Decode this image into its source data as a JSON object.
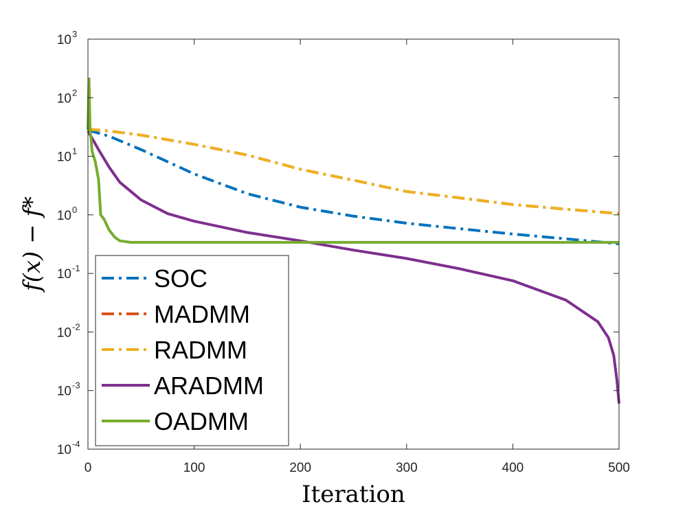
{
  "chart_data": {
    "type": "line",
    "title": "",
    "xlabel": "Iteration",
    "ylabel": "f(x) − f*",
    "xlim": [
      0,
      500
    ],
    "yscale": "log",
    "ylim": [
      0.0001,
      1000
    ],
    "xticks": [
      "0",
      "100",
      "200",
      "300",
      "400",
      "500"
    ],
    "xtick_values": [
      0,
      100,
      200,
      300,
      400,
      500
    ],
    "yticks": [
      {
        "base": "10",
        "exp": "-4",
        "value": 0.0001
      },
      {
        "base": "10",
        "exp": "-3",
        "value": 0.001
      },
      {
        "base": "10",
        "exp": "-2",
        "value": 0.01
      },
      {
        "base": "10",
        "exp": "-1",
        "value": 0.1
      },
      {
        "base": "10",
        "exp": "0",
        "value": 1
      },
      {
        "base": "10",
        "exp": "1",
        "value": 10
      },
      {
        "base": "10",
        "exp": "2",
        "value": 100
      },
      {
        "base": "10",
        "exp": "3",
        "value": 1000
      }
    ],
    "grid": false,
    "legend_position": "bottom-left",
    "series": [
      {
        "name": "SOC",
        "color": "#0072BD",
        "dash": "dashdot",
        "x": [
          0,
          20,
          50,
          100,
          150,
          200,
          250,
          300,
          350,
          400,
          450,
          500
        ],
        "y": [
          28,
          22,
          13,
          5.0,
          2.3,
          1.35,
          0.95,
          0.72,
          0.58,
          0.47,
          0.39,
          0.32
        ]
      },
      {
        "name": "MADMM",
        "color": "#D95319",
        "dash": "dashdot",
        "x": [
          0,
          20,
          50,
          100,
          150,
          200,
          250,
          300,
          350,
          400,
          450,
          500
        ],
        "y": [
          29,
          27,
          23,
          16,
          10.5,
          6.0,
          3.9,
          2.5,
          1.95,
          1.5,
          1.25,
          1.05
        ]
      },
      {
        "name": "RADMM",
        "color": "#EDB120",
        "dash": "dashdot",
        "x": [
          0,
          20,
          50,
          100,
          150,
          200,
          250,
          300,
          350,
          400,
          450,
          500
        ],
        "y": [
          29,
          27,
          23,
          16,
          10.5,
          6.0,
          3.9,
          2.5,
          1.95,
          1.5,
          1.25,
          1.05
        ]
      },
      {
        "name": "ARADMM",
        "color": "#7E2F8E",
        "dash": "solid",
        "x": [
          0,
          10,
          20,
          30,
          50,
          75,
          100,
          150,
          200,
          250,
          300,
          350,
          400,
          450,
          480,
          490,
          495,
          498,
          500
        ],
        "y": [
          27,
          13,
          6.5,
          3.6,
          1.8,
          1.05,
          0.78,
          0.5,
          0.36,
          0.25,
          0.18,
          0.12,
          0.075,
          0.035,
          0.015,
          0.008,
          0.004,
          0.0015,
          0.0006
        ]
      },
      {
        "name": "OADMM",
        "color": "#77AC30",
        "dash": "solid",
        "x": [
          0,
          1,
          2,
          4,
          7,
          10,
          12,
          15,
          20,
          25,
          30,
          40,
          60,
          100,
          200,
          300,
          400,
          500
        ],
        "y": [
          28,
          210,
          30,
          12,
          8,
          4,
          1.0,
          0.85,
          0.55,
          0.42,
          0.36,
          0.34,
          0.34,
          0.34,
          0.34,
          0.34,
          0.34,
          0.34
        ]
      }
    ]
  }
}
